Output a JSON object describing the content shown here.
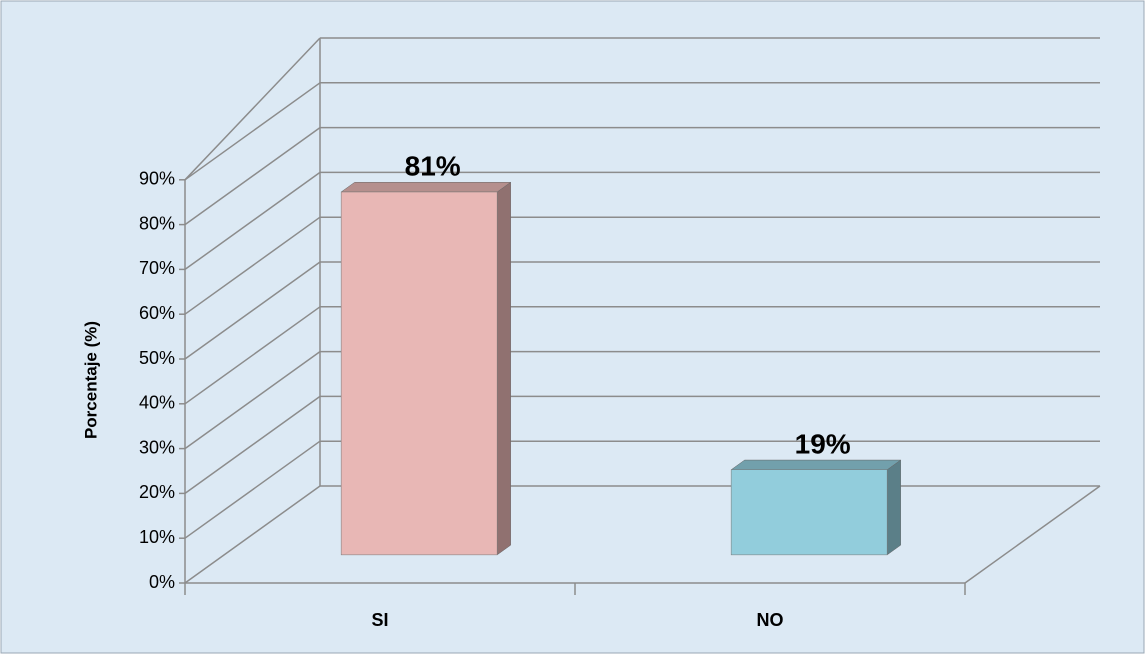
{
  "chart_data": {
    "type": "bar3d",
    "ylabel": "Porcentaje (%)",
    "categories": [
      "SI",
      "NO"
    ],
    "values": [
      81,
      19
    ],
    "value_labels": [
      "81%",
      "19%"
    ],
    "colors": [
      "#e8b7b5",
      "#92cddc"
    ],
    "ylim": [
      0,
      100
    ],
    "yticks": [
      {
        "value": 0,
        "label": "0%"
      },
      {
        "value": 10,
        "label": "10%"
      },
      {
        "value": 20,
        "label": "20%"
      },
      {
        "value": 30,
        "label": "30%"
      },
      {
        "value": 40,
        "label": "40%"
      },
      {
        "value": 50,
        "label": "50%"
      },
      {
        "value": 60,
        "label": "60%"
      },
      {
        "value": 70,
        "label": "70%"
      },
      {
        "value": 80,
        "label": "80%"
      },
      {
        "value": 90,
        "label": "90%"
      }
    ],
    "grid": true
  }
}
